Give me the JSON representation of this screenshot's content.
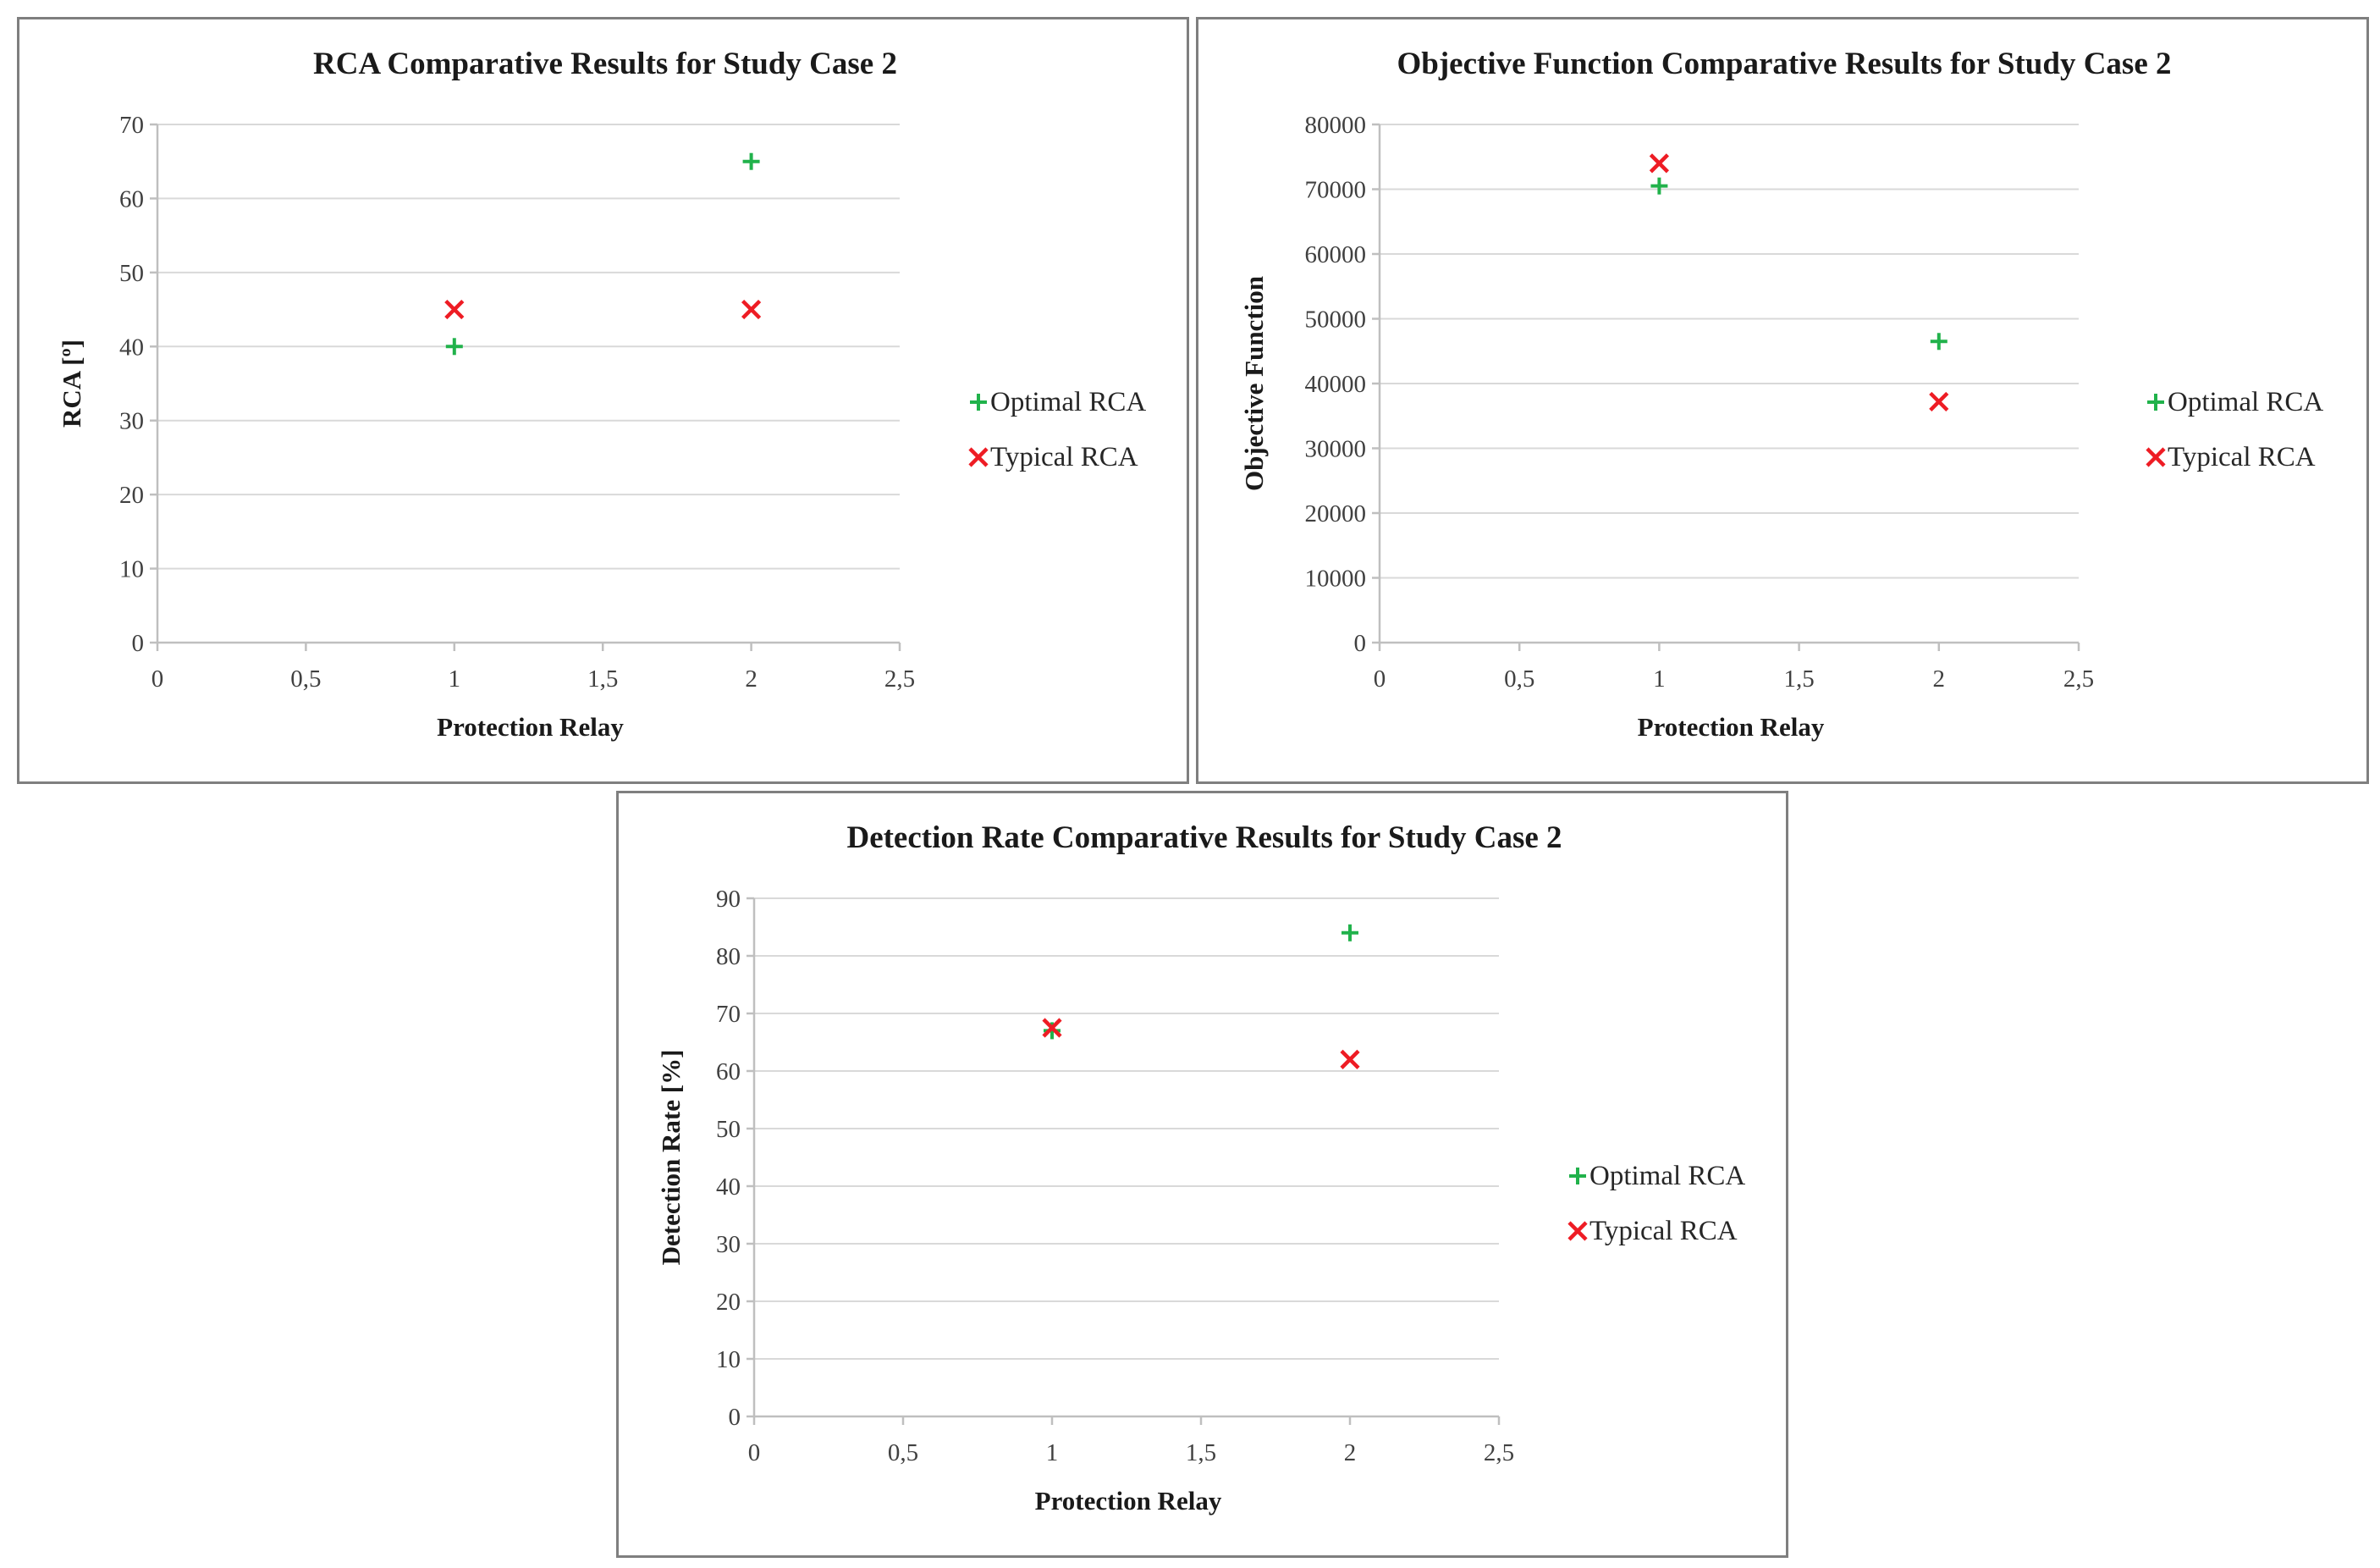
{
  "chart_data": [
    {
      "type": "scatter",
      "title": "RCA Comparative Results for Study Case 2",
      "xlabel": "Protection Relay",
      "ylabel": "RCA [º]",
      "xlim": [
        0,
        2.5
      ],
      "ylim": [
        0,
        70
      ],
      "x_ticks": [
        "0",
        "0,5",
        "1",
        "1,5",
        "2",
        "2,5"
      ],
      "y_ticks": [
        "0",
        "10",
        "20",
        "30",
        "40",
        "50",
        "60",
        "70"
      ],
      "legend_position": "right",
      "series": [
        {
          "name": "Optimal RCA",
          "marker": "plus",
          "color": "#21b24b",
          "x": [
            1,
            2
          ],
          "y": [
            40,
            65
          ]
        },
        {
          "name": "Typical RCA",
          "marker": "cross",
          "color": "#ee1c24",
          "x": [
            1,
            2
          ],
          "y": [
            45,
            45
          ]
        }
      ]
    },
    {
      "type": "scatter",
      "title": "Objective Function Comparative Results for Study Case 2",
      "xlabel": "Protection Relay",
      "ylabel": "Objective Function",
      "xlim": [
        0,
        2.5
      ],
      "ylim": [
        0,
        80000
      ],
      "x_ticks": [
        "0",
        "0,5",
        "1",
        "1,5",
        "2",
        "2,5"
      ],
      "y_ticks": [
        "0",
        "10000",
        "20000",
        "30000",
        "40000",
        "50000",
        "60000",
        "70000",
        "80000"
      ],
      "legend_position": "right",
      "series": [
        {
          "name": "Optimal RCA",
          "marker": "plus",
          "color": "#21b24b",
          "x": [
            1,
            2
          ],
          "y": [
            70500,
            46500
          ]
        },
        {
          "name": "Typical RCA",
          "marker": "cross",
          "color": "#ee1c24",
          "x": [
            1,
            2
          ],
          "y": [
            74000,
            37200
          ]
        }
      ]
    },
    {
      "type": "scatter",
      "title": "Detection Rate Comparative Results for Study Case 2",
      "xlabel": "Protection Relay",
      "ylabel": "Detection Rate [%]",
      "xlim": [
        0,
        2.5
      ],
      "ylim": [
        0,
        90
      ],
      "x_ticks": [
        "0",
        "0,5",
        "1",
        "1,5",
        "2",
        "2,5"
      ],
      "y_ticks": [
        "0",
        "10",
        "20",
        "30",
        "40",
        "50",
        "60",
        "70",
        "80",
        "90"
      ],
      "legend_position": "right",
      "series": [
        {
          "name": "Optimal RCA",
          "marker": "plus",
          "color": "#21b24b",
          "x": [
            1,
            2
          ],
          "y": [
            67,
            84
          ]
        },
        {
          "name": "Typical RCA",
          "marker": "cross",
          "color": "#ee1c24",
          "x": [
            1,
            2
          ],
          "y": [
            67.5,
            62
          ]
        }
      ]
    }
  ]
}
